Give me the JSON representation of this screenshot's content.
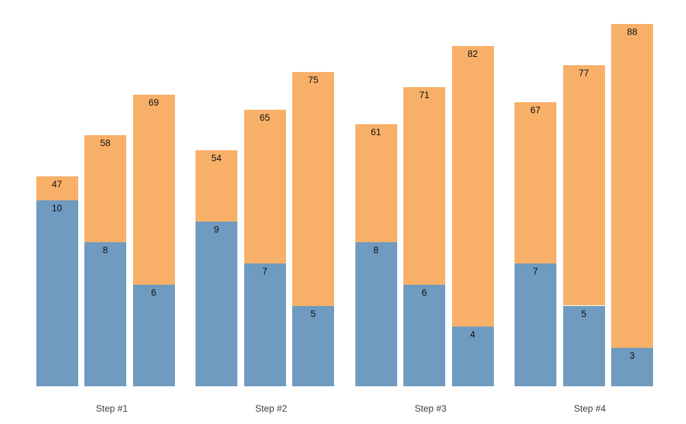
{
  "chart_data": {
    "type": "bar",
    "subtype": "grouped-stacked-dual-scale",
    "title": "",
    "xlabel": "",
    "ylabel": "",
    "grid": false,
    "legend": false,
    "axes_visible": false,
    "background_color": "#ffffff",
    "categories": [
      "Step #1",
      "Step #2",
      "Step #3",
      "Step #4"
    ],
    "bars_per_group": 3,
    "series": [
      {
        "name": "top-segment",
        "color": "#f8b069",
        "label_color": "#111111",
        "values": [
          [
            47,
            58,
            69
          ],
          [
            54,
            65,
            75
          ],
          [
            61,
            71,
            82
          ],
          [
            67,
            77,
            88
          ]
        ]
      },
      {
        "name": "bottom-segment",
        "color": "#6f9bc0",
        "label_color": "#111111",
        "values": [
          [
            10,
            8,
            6
          ],
          [
            9,
            7,
            5
          ],
          [
            8,
            6,
            4
          ],
          [
            7,
            5,
            3
          ]
        ]
      }
    ],
    "tick_label_color": "#404040"
  }
}
